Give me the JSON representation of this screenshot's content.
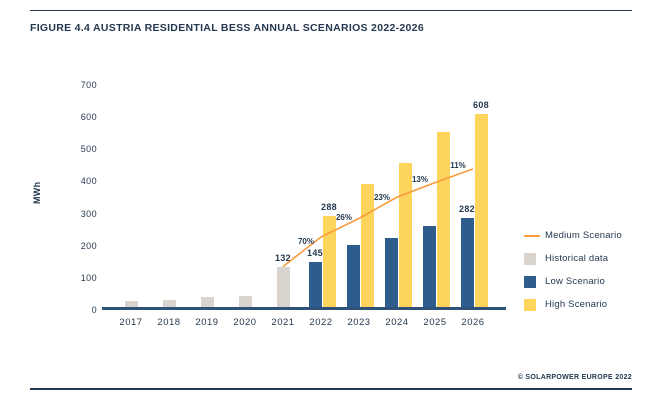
{
  "figure": {
    "credit": "© SOLARPOWER EUROPE 2022"
  },
  "theme": {
    "navy_text": "#24394F",
    "axis_blue": "#2F5378",
    "historical_gray": "#D9D4CE",
    "low_blue": "#2E5C8C",
    "high_yellow": "#FDD55C",
    "medium_orange": "#F89C3D",
    "background": "#FFFFFF"
  },
  "chart_data": {
    "type": "bar",
    "title": "FIGURE 4.4 AUSTRIA RESIDENTIAL BESS ANNUAL SCENARIOS 2022-2026",
    "xlabel": "",
    "ylabel": "MWh",
    "ylim": [
      0,
      700
    ],
    "ytick_step": 100,
    "grid": false,
    "legend_position": "right",
    "categories": [
      "2017",
      "2018",
      "2019",
      "2020",
      "2021",
      "2022",
      "2023",
      "2024",
      "2025",
      "2026"
    ],
    "series": [
      {
        "name": "Historical data",
        "kind": "bar",
        "color": "#D9D4CE",
        "values": [
          24,
          29,
          36,
          40,
          132,
          null,
          null,
          null,
          null,
          null
        ],
        "value_labels": [
          null,
          null,
          null,
          null,
          "132",
          null,
          null,
          null,
          null,
          null
        ]
      },
      {
        "name": "Low Scenario",
        "kind": "bar",
        "color": "#2E5C8C",
        "values": [
          null,
          null,
          null,
          null,
          null,
          145,
          200,
          220,
          258,
          282
        ],
        "value_labels": [
          null,
          null,
          null,
          null,
          null,
          "145",
          null,
          null,
          null,
          "282"
        ]
      },
      {
        "name": "High Scenario",
        "kind": "bar",
        "color": "#FDD55C",
        "values": [
          null,
          null,
          null,
          null,
          null,
          288,
          390,
          455,
          550,
          608
        ],
        "value_labels": [
          null,
          null,
          null,
          null,
          null,
          "288",
          null,
          null,
          null,
          "608"
        ]
      },
      {
        "name": "Medium Scenario",
        "kind": "line",
        "color": "#F89C3D",
        "values": [
          null,
          null,
          null,
          null,
          132,
          224,
          282,
          348,
          393,
          436
        ],
        "growth_labels": [
          null,
          null,
          null,
          null,
          null,
          "70%",
          "26%",
          "23%",
          "13%",
          "11%"
        ]
      }
    ],
    "legend": [
      {
        "label": "Medium Scenario",
        "swatch": "line",
        "color": "#F89C3D"
      },
      {
        "label": "Historical data",
        "swatch": "square",
        "color": "#D9D4CE"
      },
      {
        "label": "Low Scenario",
        "swatch": "square",
        "color": "#2E5C8C"
      },
      {
        "label": "High Scenario",
        "swatch": "square",
        "color": "#FDD55C"
      }
    ]
  }
}
